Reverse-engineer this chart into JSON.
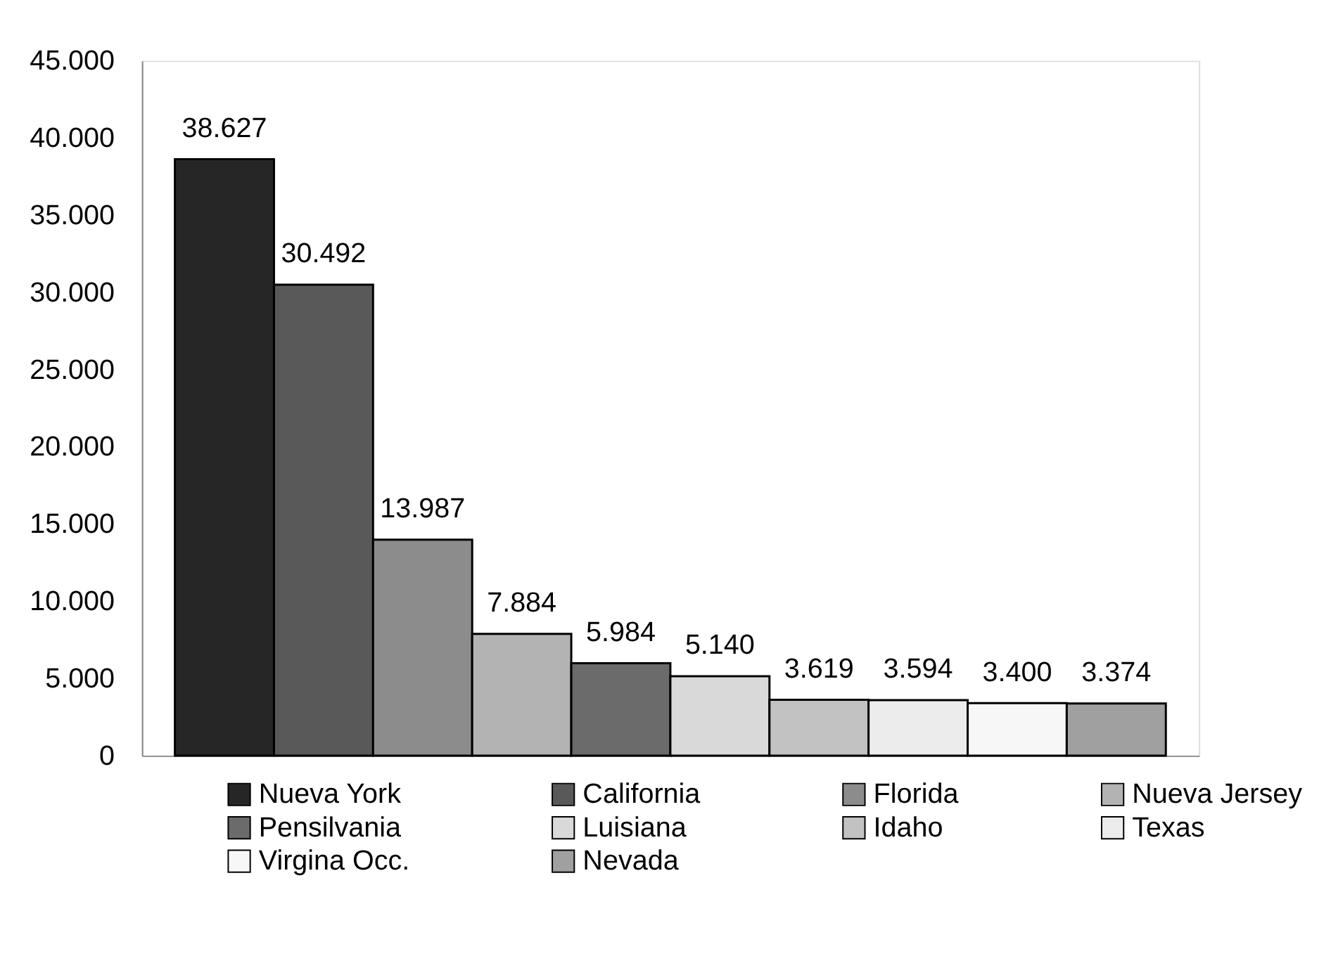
{
  "chart_data": {
    "type": "bar",
    "categories": [
      null
    ],
    "series": [
      {
        "name": "Nueva York",
        "color": "#262626",
        "values": [
          38627
        ],
        "value_labels": [
          "38.627"
        ]
      },
      {
        "name": "California",
        "color": "#595959",
        "values": [
          30492
        ],
        "value_labels": [
          "30.492"
        ]
      },
      {
        "name": "Florida",
        "color": "#8c8c8c",
        "values": [
          13987
        ],
        "value_labels": [
          "13.987"
        ]
      },
      {
        "name": "Nueva Jersey",
        "color": "#b3b3b3",
        "values": [
          7884
        ],
        "value_labels": [
          "7.884"
        ]
      },
      {
        "name": "Pensilvania",
        "color": "#6b6b6b",
        "values": [
          5984
        ],
        "value_labels": [
          "5.984"
        ]
      },
      {
        "name": "Luisiana",
        "color": "#d9d9d9",
        "values": [
          5140
        ],
        "value_labels": [
          "5.140"
        ]
      },
      {
        "name": "Idaho",
        "color": "#c2c2c2",
        "values": [
          3619
        ],
        "value_labels": [
          "3.619"
        ]
      },
      {
        "name": "Texas",
        "color": "#ececec",
        "values": [
          3594
        ],
        "value_labels": [
          "3.594"
        ]
      },
      {
        "name": "Virgina Occ.",
        "color": "#f7f7f7",
        "values": [
          3400
        ],
        "value_labels": [
          "3.400"
        ]
      },
      {
        "name": "Nevada",
        "color": "#a0a0a0",
        "values": [
          3374
        ],
        "value_labels": [
          "3.374"
        ]
      }
    ],
    "ylim": [
      0,
      45000
    ],
    "yticks": [
      {
        "value": 0,
        "label": "0"
      },
      {
        "value": 5000,
        "label": "5.000"
      },
      {
        "value": 10000,
        "label": "10.000"
      },
      {
        "value": 15000,
        "label": "15.000"
      },
      {
        "value": 20000,
        "label": "20.000"
      },
      {
        "value": 25000,
        "label": "25.000"
      },
      {
        "value": 30000,
        "label": "30.000"
      },
      {
        "value": 35000,
        "label": "35.000"
      },
      {
        "value": 40000,
        "label": "40.000"
      },
      {
        "value": 45000,
        "label": "45.000"
      }
    ],
    "tick_labels": "y",
    "grid": false,
    "legend": "bottom"
  }
}
